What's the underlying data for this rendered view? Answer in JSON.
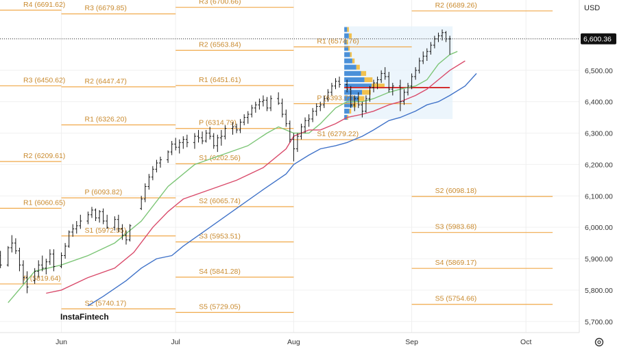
{
  "currency": "USD",
  "logo": "InstaFintech",
  "current_price": "6,600.36",
  "settings_icon": "settings-gear-icon",
  "colors": {
    "pivot": "#f0a848",
    "pivot_text": "#c98a2e",
    "ma_fast": "#7cc576",
    "ma_mid": "#d94a6a",
    "ma_slow": "#3f72c8",
    "poc_line": "#d32f2f",
    "profile_buy": "#4a90d9",
    "profile_sell": "#f2c14e",
    "profile_bg": "#e6f1fb"
  },
  "chart_data": {
    "type": "ohlc",
    "yaxis": {
      "min": 5680,
      "max": 6700,
      "ticks": [
        5700,
        5800,
        5900,
        6000,
        6100,
        6200,
        6300,
        6400,
        6500,
        6600
      ],
      "tick_labels": [
        "5,700.00",
        "5,800.00",
        "5,900.00",
        "6,000.00",
        "6,100.00",
        "6,200.00",
        "6,300.00",
        "6,400.00",
        "6,500.00",
        "6,600.00"
      ]
    },
    "xaxis": {
      "labels": [
        {
          "label": "Jun",
          "day": 31
        },
        {
          "label": "Jul",
          "day": 61
        },
        {
          "label": "Aug",
          "day": 92
        },
        {
          "label": "Sep",
          "day": 123
        },
        {
          "label": "Oct",
          "day": 153
        }
      ],
      "range": [
        12,
        167
      ]
    },
    "pivot_periods": [
      {
        "start_day": 0,
        "end_day": 31,
        "levels": [
          {
            "name": "R4",
            "label": "R4 (6691.62)",
            "value": 6691.62
          },
          {
            "name": "R3",
            "label": "R3 (6450.62)",
            "value": 6450.62
          },
          {
            "name": "R2",
            "label": "R2 (6209.61)",
            "value": 6209.61
          },
          {
            "name": "R1",
            "label": "R1 (6060.65)",
            "value": 6060.65
          },
          {
            "name": "P",
            "label": "P (5819.64)",
            "value": 5819.64
          }
        ]
      },
      {
        "start_day": 31,
        "end_day": 61,
        "levels": [
          {
            "name": "R3",
            "label": "R3 (6679.85)",
            "value": 6679.85
          },
          {
            "name": "R2",
            "label": "R2 (6447.47)",
            "value": 6447.47
          },
          {
            "name": "R1",
            "label": "R1 (6326.20)",
            "value": 6326.2
          },
          {
            "name": "P",
            "label": "P (6093.82)",
            "value": 6093.82
          },
          {
            "name": "S1",
            "label": "S1 (5972.55)",
            "value": 5972.55
          },
          {
            "name": "S2",
            "label": "S2 (5740.17)",
            "value": 5740.17
          }
        ]
      },
      {
        "start_day": 61,
        "end_day": 92,
        "levels": [
          {
            "name": "R3",
            "label": "R3 (6700.66)",
            "value": 6700.66
          },
          {
            "name": "R2",
            "label": "R2 (6563.84)",
            "value": 6563.84
          },
          {
            "name": "R1",
            "label": "R1 (6451.61)",
            "value": 6451.61
          },
          {
            "name": "P",
            "label": "P (6314.79)",
            "value": 6314.79
          },
          {
            "name": "S1",
            "label": "S1 (6202.56)",
            "value": 6202.56
          },
          {
            "name": "S2",
            "label": "S2 (6065.74)",
            "value": 6065.74
          },
          {
            "name": "S3",
            "label": "S3 (5953.51)",
            "value": 5953.51
          },
          {
            "name": "S4",
            "label": "S4 (5841.28)",
            "value": 5841.28
          },
          {
            "name": "S5",
            "label": "S5 (5729.05)",
            "value": 5729.05
          }
        ]
      },
      {
        "start_day": 92,
        "end_day": 123,
        "levels": [
          {
            "name": "R1",
            "label": "R1 (6574.76)",
            "value": 6574.76
          },
          {
            "name": "P",
            "label": "P (6393.72)",
            "value": 6393.72
          },
          {
            "name": "S1",
            "label": "S1 (6279.22)",
            "value": 6279.22
          }
        ]
      },
      {
        "start_day": 123,
        "end_day": 160,
        "levels": [
          {
            "name": "R2",
            "label": "R2 (6689.26)",
            "value": 6689.26
          },
          {
            "name": "S2",
            "label": "S2 (6098.18)",
            "value": 6098.18
          },
          {
            "name": "S3",
            "label": "S3 (5983.68)",
            "value": 5983.68
          },
          {
            "name": "S4",
            "label": "S4 (5869.17)",
            "value": 5869.17
          },
          {
            "name": "S5",
            "label": "S5 (5754.66)",
            "value": 5754.66
          }
        ]
      }
    ],
    "bars": [
      [
        11,
        5870,
        5895,
        5850,
        5875
      ],
      [
        12,
        5875,
        5900,
        5860,
        5890
      ],
      [
        13,
        5890,
        5930,
        5880,
        5920
      ],
      [
        14,
        5920,
        5950,
        5900,
        5910
      ],
      [
        15,
        5910,
        5925,
        5870,
        5880
      ],
      [
        17,
        5880,
        5940,
        5875,
        5935
      ],
      [
        18,
        5935,
        5975,
        5920,
        5950
      ],
      [
        19,
        5950,
        5965,
        5915,
        5925
      ],
      [
        20,
        5925,
        5935,
        5860,
        5880
      ],
      [
        21,
        5880,
        5895,
        5820,
        5840
      ],
      [
        22,
        5840,
        5860,
        5790,
        5810
      ],
      [
        24,
        5830,
        5870,
        5820,
        5860
      ],
      [
        25,
        5860,
        5895,
        5840,
        5880
      ],
      [
        26,
        5880,
        5910,
        5860,
        5870
      ],
      [
        27,
        5870,
        5900,
        5850,
        5890
      ],
      [
        28,
        5890,
        5930,
        5880,
        5915
      ],
      [
        29,
        5915,
        5930,
        5860,
        5875
      ],
      [
        31,
        5875,
        5920,
        5870,
        5910
      ],
      [
        32,
        5910,
        5950,
        5900,
        5940
      ],
      [
        33,
        5940,
        5990,
        5935,
        5985
      ],
      [
        34,
        5985,
        6010,
        5970,
        5995
      ],
      [
        35,
        5995,
        6020,
        5980,
        6005
      ],
      [
        36,
        6005,
        6040,
        5995,
        6020
      ],
      [
        38,
        6020,
        6050,
        6010,
        6040
      ],
      [
        39,
        6040,
        6065,
        6030,
        6055
      ],
      [
        40,
        6055,
        6060,
        6020,
        6030
      ],
      [
        41,
        6030,
        6055,
        6015,
        6050
      ],
      [
        42,
        6050,
        6060,
        6010,
        6020
      ],
      [
        43,
        6020,
        6040,
        5995,
        6000
      ],
      [
        45,
        6000,
        6035,
        5990,
        6025
      ],
      [
        46,
        6025,
        6040,
        5985,
        5995
      ],
      [
        47,
        5995,
        6010,
        5960,
        5975
      ],
      [
        48,
        5975,
        5990,
        5945,
        5960
      ],
      [
        49,
        5960,
        6010,
        5955,
        6005
      ],
      [
        52,
        6060,
        6100,
        6055,
        6090
      ],
      [
        53,
        6090,
        6140,
        6080,
        6130
      ],
      [
        54,
        6130,
        6170,
        6120,
        6160
      ],
      [
        55,
        6160,
        6195,
        6150,
        6185
      ],
      [
        56,
        6185,
        6215,
        6175,
        6205
      ],
      [
        57,
        6205,
        6225,
        6190,
        6215
      ],
      [
        59,
        6215,
        6245,
        6205,
        6240
      ],
      [
        60,
        6240,
        6275,
        6230,
        6265
      ],
      [
        61,
        6265,
        6285,
        6245,
        6255
      ],
      [
        62,
        6255,
        6280,
        6235,
        6270
      ],
      [
        63,
        6270,
        6290,
        6250,
        6280
      ],
      [
        64,
        6280,
        6295,
        6255,
        6270
      ],
      [
        66,
        6270,
        6300,
        6250,
        6290
      ],
      [
        67,
        6290,
        6310,
        6270,
        6285
      ],
      [
        68,
        6285,
        6305,
        6265,
        6275
      ],
      [
        69,
        6275,
        6310,
        6270,
        6300
      ],
      [
        70,
        6300,
        6320,
        6280,
        6290
      ],
      [
        71,
        6290,
        6300,
        6250,
        6260
      ],
      [
        72,
        6260,
        6295,
        6240,
        6285
      ],
      [
        73,
        6285,
        6310,
        6260,
        6290
      ],
      [
        74,
        6290,
        6325,
        6280,
        6315
      ],
      [
        76,
        6315,
        6335,
        6295,
        6320
      ],
      [
        77,
        6320,
        6330,
        6300,
        6310
      ],
      [
        78,
        6310,
        6345,
        6300,
        6335
      ],
      [
        79,
        6335,
        6360,
        6325,
        6350
      ],
      [
        80,
        6350,
        6370,
        6330,
        6360
      ],
      [
        81,
        6360,
        6390,
        6350,
        6380
      ],
      [
        82,
        6380,
        6400,
        6365,
        6390
      ],
      [
        83,
        6390,
        6410,
        6375,
        6400
      ],
      [
        84,
        6400,
        6420,
        6385,
        6405
      ],
      [
        85,
        6405,
        6415,
        6370,
        6380
      ],
      [
        86,
        6380,
        6420,
        6370,
        6410
      ],
      [
        88,
        6410,
        6430,
        6390,
        6395
      ],
      [
        89,
        6395,
        6410,
        6350,
        6360
      ],
      [
        90,
        6360,
        6375,
        6320,
        6330
      ],
      [
        91,
        6330,
        6340,
        6270,
        6280
      ],
      [
        92,
        6280,
        6300,
        6210,
        6250
      ],
      [
        93,
        6250,
        6300,
        6240,
        6290
      ],
      [
        94,
        6290,
        6330,
        6280,
        6320
      ],
      [
        95,
        6320,
        6350,
        6300,
        6340
      ],
      [
        96,
        6340,
        6360,
        6320,
        6345
      ],
      [
        97,
        6345,
        6380,
        6335,
        6370
      ],
      [
        98,
        6370,
        6395,
        6355,
        6385
      ],
      [
        99,
        6385,
        6400,
        6370,
        6390
      ],
      [
        100,
        6390,
        6420,
        6380,
        6410
      ],
      [
        101,
        6410,
        6440,
        6400,
        6430
      ],
      [
        102,
        6430,
        6460,
        6420,
        6450
      ],
      [
        103,
        6450,
        6475,
        6440,
        6465
      ],
      [
        104,
        6465,
        6480,
        6445,
        6455
      ],
      [
        106,
        6455,
        6470,
        6430,
        6440
      ],
      [
        107,
        6440,
        6450,
        6380,
        6390
      ],
      [
        108,
        6390,
        6420,
        6370,
        6410
      ],
      [
        109,
        6410,
        6430,
        6380,
        6390
      ],
      [
        110,
        6390,
        6400,
        6350,
        6370
      ],
      [
        111,
        6370,
        6420,
        6365,
        6410
      ],
      [
        112,
        6410,
        6450,
        6400,
        6445
      ],
      [
        113,
        6445,
        6470,
        6430,
        6460
      ],
      [
        114,
        6460,
        6480,
        6440,
        6470
      ],
      [
        115,
        6470,
        6500,
        6460,
        6490
      ],
      [
        116,
        6490,
        6510,
        6470,
        6480
      ],
      [
        117,
        6480,
        6495,
        6430,
        6440
      ],
      [
        118,
        6440,
        6460,
        6420,
        6450
      ],
      [
        120,
        6450,
        6470,
        6370,
        6400
      ],
      [
        121,
        6400,
        6440,
        6390,
        6430
      ],
      [
        122,
        6430,
        6460,
        6420,
        6450
      ],
      [
        123,
        6450,
        6490,
        6440,
        6480
      ],
      [
        124,
        6480,
        6510,
        6470,
        6500
      ],
      [
        125,
        6500,
        6540,
        6490,
        6530
      ],
      [
        126,
        6530,
        6560,
        6520,
        6545
      ],
      [
        127,
        6545,
        6570,
        6530,
        6560
      ],
      [
        128,
        6560,
        6590,
        6550,
        6580
      ],
      [
        129,
        6580,
        6610,
        6570,
        6600
      ],
      [
        130,
        6600,
        6620,
        6590,
        6610
      ],
      [
        131,
        6610,
        6630,
        6595,
        6620
      ],
      [
        132,
        6620,
        6625,
        6590,
        6600
      ],
      [
        133,
        6600,
        6610,
        6550,
        6600
      ]
    ],
    "ma_fast": [
      [
        17,
        5760
      ],
      [
        24,
        5860
      ],
      [
        31,
        5880
      ],
      [
        38,
        5910
      ],
      [
        45,
        5950
      ],
      [
        52,
        6020
      ],
      [
        59,
        6130
      ],
      [
        66,
        6200
      ],
      [
        73,
        6230
      ],
      [
        80,
        6260
      ],
      [
        85,
        6300
      ],
      [
        88,
        6320
      ],
      [
        92,
        6300
      ],
      [
        96,
        6300
      ],
      [
        99,
        6330
      ],
      [
        103,
        6380
      ],
      [
        106,
        6400
      ],
      [
        110,
        6400
      ],
      [
        113,
        6410
      ],
      [
        117,
        6430
      ],
      [
        120,
        6440
      ],
      [
        124,
        6450
      ],
      [
        127,
        6470
      ],
      [
        130,
        6520
      ],
      [
        133,
        6550
      ],
      [
        135,
        6560
      ]
    ],
    "ma_mid": [
      [
        27,
        5790
      ],
      [
        31,
        5800
      ],
      [
        38,
        5840
      ],
      [
        45,
        5870
      ],
      [
        50,
        5920
      ],
      [
        55,
        6000
      ],
      [
        59,
        6050
      ],
      [
        63,
        6090
      ],
      [
        70,
        6120
      ],
      [
        77,
        6150
      ],
      [
        84,
        6190
      ],
      [
        90,
        6250
      ],
      [
        92,
        6290
      ],
      [
        96,
        6310
      ],
      [
        99,
        6310
      ],
      [
        103,
        6330
      ],
      [
        106,
        6350
      ],
      [
        110,
        6360
      ],
      [
        113,
        6370
      ],
      [
        117,
        6390
      ],
      [
        120,
        6400
      ],
      [
        124,
        6420
      ],
      [
        127,
        6440
      ],
      [
        130,
        6470
      ],
      [
        133,
        6500
      ],
      [
        137,
        6530
      ]
    ],
    "ma_slow": [
      [
        38,
        5750
      ],
      [
        42,
        5780
      ],
      [
        48,
        5830
      ],
      [
        52,
        5870
      ],
      [
        56,
        5900
      ],
      [
        60,
        5910
      ],
      [
        63,
        5940
      ],
      [
        70,
        6000
      ],
      [
        77,
        6060
      ],
      [
        84,
        6120
      ],
      [
        90,
        6170
      ],
      [
        92,
        6200
      ],
      [
        96,
        6230
      ],
      [
        99,
        6250
      ],
      [
        103,
        6260
      ],
      [
        106,
        6270
      ],
      [
        110,
        6290
      ],
      [
        113,
        6310
      ],
      [
        117,
        6340
      ],
      [
        120,
        6350
      ],
      [
        124,
        6370
      ],
      [
        127,
        6390
      ],
      [
        130,
        6400
      ],
      [
        133,
        6420
      ],
      [
        137,
        6450
      ],
      [
        140,
        6490
      ]
    ],
    "poc_value": 6445,
    "volume_profile": {
      "box_top": 6640,
      "box_bottom": 6345,
      "rows": [
        [
          6630,
          0.1,
          0.06
        ],
        [
          6610,
          0.16,
          0.1
        ],
        [
          6590,
          0.08,
          0.05
        ],
        [
          6570,
          0.14,
          0.05
        ],
        [
          6550,
          0.2,
          0.06
        ],
        [
          6530,
          0.28,
          0.08
        ],
        [
          6510,
          0.42,
          0.12
        ],
        [
          6490,
          0.58,
          0.18
        ],
        [
          6470,
          0.7,
          0.28
        ],
        [
          6450,
          0.95,
          0.45
        ],
        [
          6430,
          0.62,
          0.3
        ],
        [
          6410,
          0.48,
          0.22
        ],
        [
          6390,
          0.3,
          0.12
        ],
        [
          6370,
          0.18,
          0.06
        ],
        [
          6350,
          0.1,
          0.04
        ]
      ]
    }
  }
}
